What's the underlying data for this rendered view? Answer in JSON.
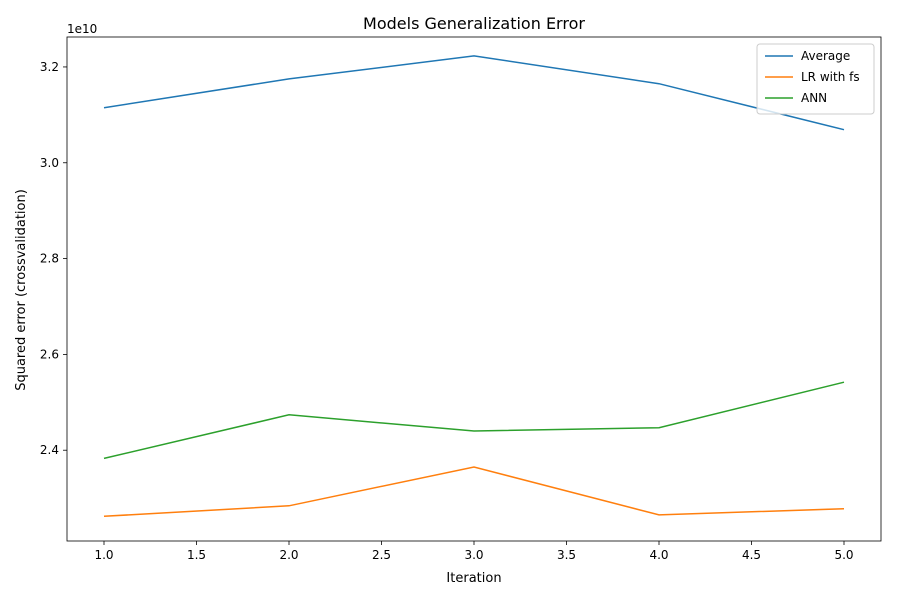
{
  "chart_data": {
    "type": "line",
    "title": "Models Generalization Error",
    "xlabel": "Iteration",
    "ylabel": "Squared error (crossvalidation)",
    "offset_text": "1e10",
    "x": [
      1.0,
      2.0,
      3.0,
      4.0,
      5.0
    ],
    "xlim": [
      0.8,
      5.2
    ],
    "ylim": [
      22105000000.0,
      32625000000.0
    ],
    "xticks": [
      1.0,
      1.5,
      2.0,
      2.5,
      3.0,
      3.5,
      4.0,
      4.5,
      5.0
    ],
    "xtick_labels": [
      "1.0",
      "1.5",
      "2.0",
      "2.5",
      "3.0",
      "3.5",
      "4.0",
      "4.5",
      "5.0"
    ],
    "yticks": [
      24000000000.0,
      26000000000.0,
      28000000000.0,
      30000000000.0,
      32000000000.0
    ],
    "ytick_labels": [
      "2.4",
      "2.6",
      "2.8",
      "3.0",
      "3.2"
    ],
    "grid": false,
    "legend_position": "top-right",
    "series": [
      {
        "name": "Average",
        "color": "#1f77b4",
        "values": [
          31150000000.0,
          31750000000.0,
          32230000000.0,
          31650000000.0,
          30690000000.0
        ]
      },
      {
        "name": "LR with fs",
        "color": "#ff7f0e",
        "values": [
          22620000000.0,
          22840000000.0,
          23650000000.0,
          22650000000.0,
          22780000000.0
        ]
      },
      {
        "name": "ANN",
        "color": "#2ca02c",
        "values": [
          23830000000.0,
          24740000000.0,
          24400000000.0,
          24470000000.0,
          25420000000.0
        ]
      }
    ]
  }
}
